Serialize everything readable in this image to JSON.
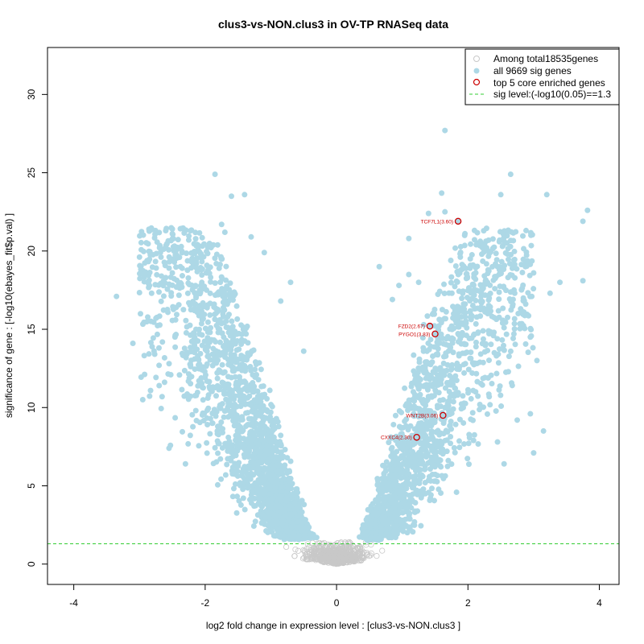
{
  "chart_data": {
    "type": "scatter",
    "title": "clus3-vs-NON.clus3 in OV-TP RNASeq data",
    "xlabel": "log2 fold change in expression level : [clus3-vs-NON.clus3 ]",
    "ylabel": "significance of gene : [-log10(ebayes_fit$p.val) ]",
    "xlim": [
      -4.4,
      4.3
    ],
    "ylim": [
      -1.3,
      33
    ],
    "x_ticks": [
      -4,
      -2,
      0,
      2,
      4
    ],
    "y_ticks": [
      0,
      5,
      10,
      15,
      20,
      25,
      30
    ],
    "x_tick_labels": [
      "-4",
      "-2",
      "0",
      "2",
      "4"
    ],
    "y_tick_labels": [
      "0",
      "5",
      "10",
      "15",
      "20",
      "25",
      "30"
    ],
    "sig_level": 1.3,
    "legend_position": "top-right",
    "legend": [
      {
        "label": "Among total18535genes",
        "kind": "open-circle",
        "color": "#c8c8c8"
      },
      {
        "label": "all 9669 sig genes",
        "kind": "filled-circle",
        "color": "#add8e6"
      },
      {
        "label": "top 5 core enriched genes",
        "kind": "red-circle",
        "color": "#cc0000"
      },
      {
        "label": "sig level:(-log10(0.05)==1.3",
        "kind": "dashed-line",
        "color": "#33cc33"
      }
    ],
    "colors": {
      "nonsig": "#c8c8c8",
      "sig": "#add8e6",
      "highlight": "#cc0000",
      "siglevel": "#33cc33"
    },
    "top_genes": [
      {
        "label": "TCF7L1(3.60)",
        "x": 1.85,
        "y": 21.9
      },
      {
        "label": "FZD2(2.67)",
        "x": 1.42,
        "y": 15.2
      },
      {
        "label": "PYGO1(3.83)",
        "x": 1.5,
        "y": 14.7
      },
      {
        "label": "WNT2B(3.06)",
        "x": 1.62,
        "y": 9.5
      },
      {
        "label": "CXXC4(2.30)",
        "x": 1.22,
        "y": 8.1
      }
    ],
    "outliers": [
      [
        -1.85,
        24.9
      ],
      [
        -1.6,
        23.5
      ],
      [
        -1.4,
        23.6
      ],
      [
        -2.6,
        21.3
      ],
      [
        -2.5,
        21.1
      ],
      [
        -2.25,
        20.7
      ],
      [
        -1.75,
        21.7
      ],
      [
        -1.7,
        21.2
      ],
      [
        -1.3,
        20.9
      ],
      [
        -1.1,
        19.9
      ],
      [
        -2.6,
        18.3
      ],
      [
        -2.5,
        18.6
      ],
      [
        -2.35,
        18.9
      ],
      [
        -3.35,
        17.1
      ],
      [
        -3.1,
        14.1
      ],
      [
        -2.95,
        10.5
      ],
      [
        -2.7,
        11.4
      ],
      [
        -2.55,
        7.4
      ],
      [
        -2.3,
        6.4
      ],
      [
        -2.45,
        15.6
      ],
      [
        -0.7,
        18.0
      ],
      [
        -0.85,
        16.8
      ],
      [
        -0.5,
        13.6
      ],
      [
        1.65,
        27.7
      ],
      [
        1.6,
        23.7
      ],
      [
        2.65,
        24.9
      ],
      [
        2.5,
        23.6
      ],
      [
        3.2,
        23.6
      ],
      [
        1.4,
        22.4
      ],
      [
        1.1,
        20.8
      ],
      [
        1.65,
        22.5
      ],
      [
        1.95,
        21.0
      ],
      [
        2.15,
        20.5
      ],
      [
        2.45,
        19.0
      ],
      [
        3.75,
        21.9
      ],
      [
        3.82,
        22.6
      ],
      [
        3.0,
        18.6
      ],
      [
        3.4,
        18.0
      ],
      [
        3.75,
        18.1
      ],
      [
        3.25,
        17.3
      ],
      [
        2.85,
        16.1
      ],
      [
        2.55,
        15.1
      ],
      [
        2.7,
        14.7
      ],
      [
        2.95,
        14.5
      ],
      [
        3.05,
        13.0
      ],
      [
        2.95,
        9.6
      ],
      [
        3.0,
        7.1
      ],
      [
        2.75,
        9.2
      ],
      [
        3.15,
        8.5
      ],
      [
        2.55,
        6.4
      ],
      [
        2.45,
        7.8
      ],
      [
        0.85,
        16.9
      ],
      [
        0.95,
        17.8
      ],
      [
        1.1,
        18.5
      ],
      [
        0.65,
        19.0
      ],
      [
        1.25,
        18.0
      ],
      [
        2.2,
        17.1
      ],
      [
        2.3,
        16.0
      ]
    ]
  }
}
